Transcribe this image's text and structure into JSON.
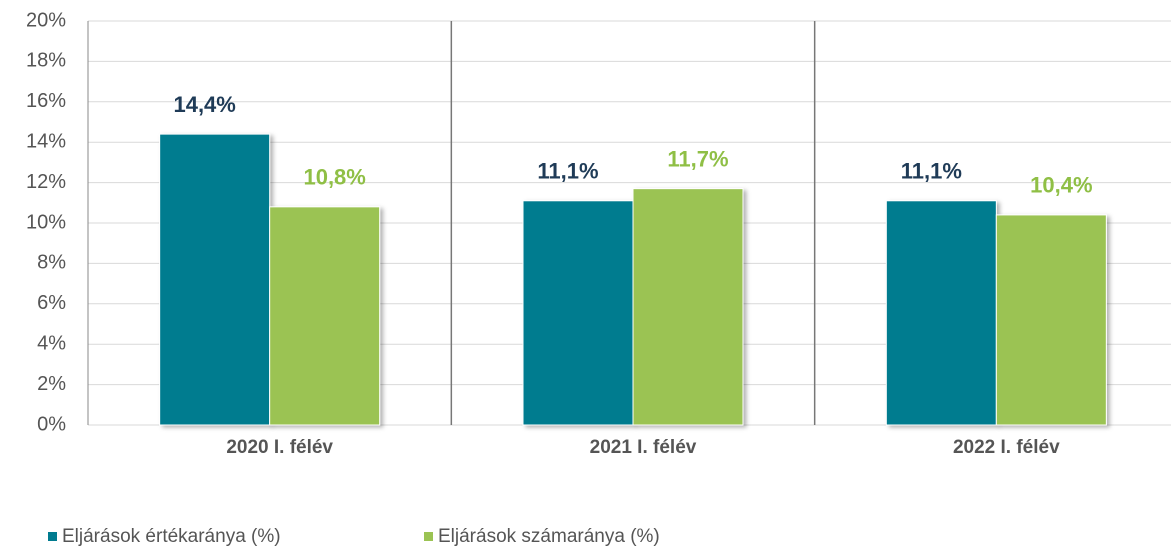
{
  "chart_data": {
    "type": "bar",
    "categories": [
      "2020 I. félév",
      "2021 I. félév",
      "2022 I. félév"
    ],
    "series": [
      {
        "name": "Eljárások értékaránya (%)",
        "color": "#007b8f",
        "label_color": "#1f3b57",
        "values": [
          14.4,
          11.1,
          11.1
        ],
        "value_labels": [
          "14,4%",
          "11,1%",
          "11,1%"
        ]
      },
      {
        "name": "Eljárások számaránya (%)",
        "color": "#9bc353",
        "label_color": "#8fbf45",
        "values": [
          10.8,
          11.7,
          10.4
        ],
        "value_labels": [
          "10,8%",
          "11,7%",
          "10,4%"
        ]
      }
    ],
    "ylim": [
      0,
      20
    ],
    "yticks": [
      {
        "value": 0,
        "label": "0%"
      },
      {
        "value": 2,
        "label": "2%"
      },
      {
        "value": 4,
        "label": "4%"
      },
      {
        "value": 6,
        "label": "6%"
      },
      {
        "value": 8,
        "label": "8%"
      },
      {
        "value": 10,
        "label": "10%"
      },
      {
        "value": 12,
        "label": "12%"
      },
      {
        "value": 14,
        "label": "14%"
      },
      {
        "value": 16,
        "label": "16%"
      },
      {
        "value": 18,
        "label": "18%"
      },
      {
        "value": 20,
        "label": "20%"
      }
    ],
    "grid": true
  }
}
